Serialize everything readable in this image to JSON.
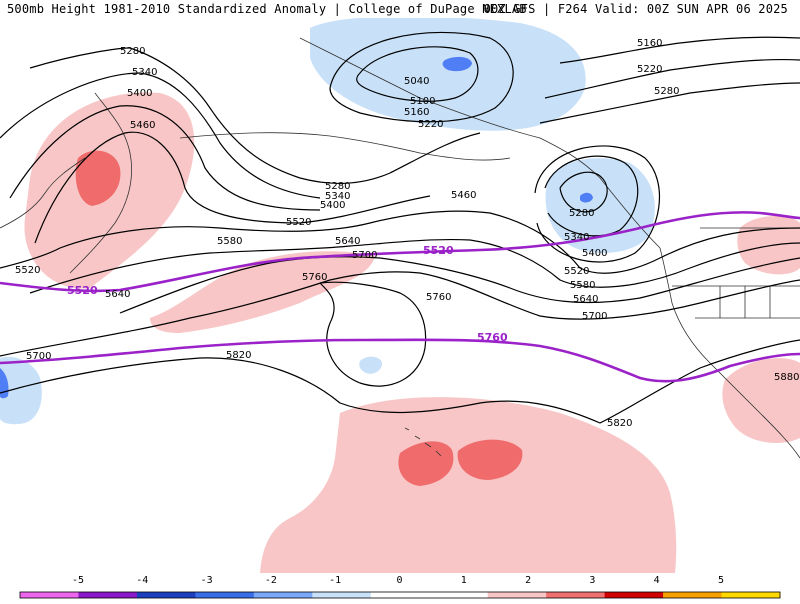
{
  "header": {
    "left_title": "500mb Height 1981-2010 Standardized Anomaly | College of DuPage NEXLAB",
    "right_title": "00Z GFS | F264 Valid: 00Z SUN APR 06 2025"
  },
  "colors": {
    "contour": "#000000",
    "highlight_contour": "#9a22c8",
    "neg_1": "#c8e1f8",
    "neg_2": "#4f7ef5",
    "pos_1": "#f8c6c6",
    "pos_2": "#f06c6c",
    "coast": "#333333"
  },
  "contour_labels": {
    "h5280_nw": "5280",
    "h5340_nw": "5340",
    "h5400_nw": "5400",
    "h5460_nw": "5460",
    "h5520_w": "5520",
    "h5160_ne": "5160",
    "h5220_ne": "5220",
    "h5280_ne": "5280",
    "h5040": "5040",
    "h5100": "5100",
    "h5160_n": "5160",
    "h5220_n": "5220",
    "h5280_c": "5280",
    "h5340_c": "5340",
    "h5400_c": "5400",
    "h5460_c": "5460",
    "h5520_c": "5520",
    "h5580_c": "5580",
    "h5640_c": "5640",
    "h5700_c": "5700",
    "h5760_c": "5760",
    "h5280_low": "5280",
    "h5340_low": "5340",
    "h5400_low": "5400",
    "h5520_low": "5520",
    "h5580_low": "5580",
    "h5640_low": "5640",
    "h5700_low": "5700",
    "h5640_w": "5640",
    "h5760_mid": "5760",
    "h5700_sw": "5700",
    "h5820_sw": "5820",
    "h5820_s": "5820",
    "h5880_se": "5880",
    "purple_5520_w": "5520",
    "purple_5520_e": "5520",
    "purple_5760": "5760"
  },
  "colorbar": {
    "ticks": [
      "-5",
      "-4",
      "-3",
      "-2",
      "-1",
      "0",
      "1",
      "2",
      "3",
      "4",
      "5"
    ],
    "segments": [
      "#ee66ee",
      "#8a18c8",
      "#1c3fc0",
      "#3a6ee8",
      "#7aa8f8",
      "#c8e1f8",
      "#ffffff",
      "#ffffff",
      "#f8c6c6",
      "#f07070",
      "#d00000",
      "#f8a000",
      "#ffd800"
    ]
  }
}
